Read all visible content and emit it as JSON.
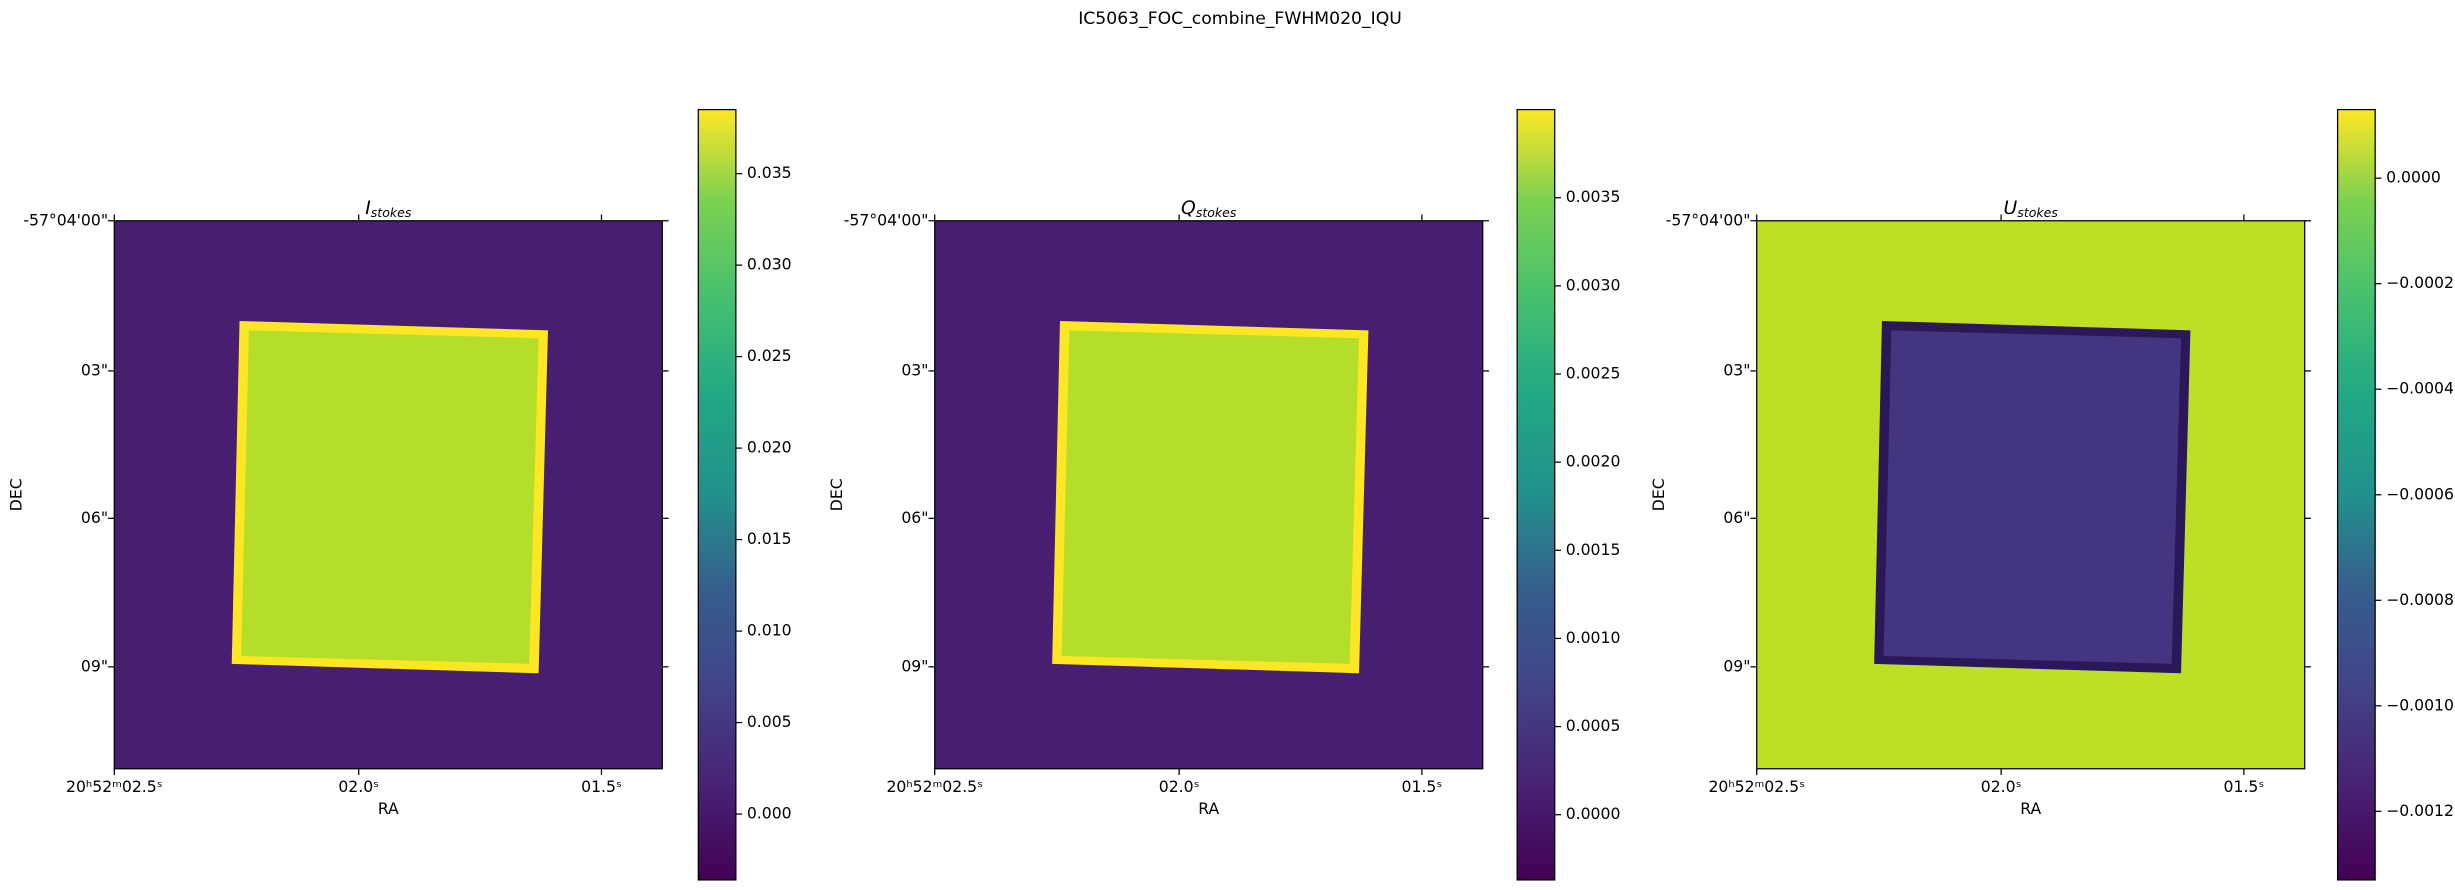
{
  "title": "IC5063_FOC_combine_FWHM020_IQU",
  "chart_data": [
    {
      "type": "image",
      "title": {
        "main": "I",
        "sub": "stokes"
      },
      "xlabel": "RA",
      "ylabel": "DEC",
      "xtick_labels": [
        "20ʰ52ᵐ02.5ˢ",
        "02.0ˢ",
        "01.5ˢ"
      ],
      "ytick_labels": [
        "-57°04'00\"",
        "03\"",
        "06\"",
        "09\""
      ],
      "colormap": "viridis",
      "background_color": "#481f70",
      "square_color": "#b5de2b",
      "edge_color": "#fde725",
      "clim": [
        -0.0036,
        0.0385
      ],
      "colorbar_ticks": [
        {
          "value": 0,
          "label": "0.000"
        },
        {
          "value": 0.005,
          "label": "0.005"
        },
        {
          "value": 0.01,
          "label": "0.010"
        },
        {
          "value": 0.015,
          "label": "0.015"
        },
        {
          "value": 0.02,
          "label": "0.020"
        },
        {
          "value": 0.025,
          "label": "0.025"
        },
        {
          "value": 0.03,
          "label": "0.030"
        },
        {
          "value": 0.035,
          "label": "0.035"
        }
      ]
    },
    {
      "type": "image",
      "title": {
        "main": "Q",
        "sub": "stokes"
      },
      "xlabel": "RA",
      "ylabel": "DEC",
      "xtick_labels": [
        "20ʰ52ᵐ02.5ˢ",
        "02.0ˢ",
        "01.5ˢ"
      ],
      "ytick_labels": [
        "-57°04'00\"",
        "03\"",
        "06\"",
        "09\""
      ],
      "colormap": "viridis",
      "background_color": "#481f70",
      "square_color": "#b5de2b",
      "edge_color": "#fde725",
      "clim": [
        -0.00037,
        0.004
      ],
      "colorbar_ticks": [
        {
          "value": 0,
          "label": "0.0000"
        },
        {
          "value": 0.0005,
          "label": "0.0005"
        },
        {
          "value": 0.001,
          "label": "0.0010"
        },
        {
          "value": 0.0015,
          "label": "0.0015"
        },
        {
          "value": 0.002,
          "label": "0.0020"
        },
        {
          "value": 0.0025,
          "label": "0.0025"
        },
        {
          "value": 0.003,
          "label": "0.0030"
        },
        {
          "value": 0.0035,
          "label": "0.0035"
        }
      ]
    },
    {
      "type": "image",
      "title": {
        "main": "U",
        "sub": "stokes"
      },
      "xlabel": "RA",
      "ylabel": "DEC",
      "xtick_labels": [
        "20ʰ52ᵐ02.5ˢ",
        "02.0ˢ",
        "01.5ˢ"
      ],
      "ytick_labels": [
        "-57°04'00\"",
        "03\"",
        "06\"",
        "09\""
      ],
      "colormap": "viridis",
      "background_color": "#bddf26",
      "square_color": "#433580",
      "edge_color": "#2a1858",
      "clim": [
        -0.00133,
        0.00013
      ],
      "colorbar_ticks": [
        {
          "value": -0.0012,
          "label": "−0.0012"
        },
        {
          "value": -0.001,
          "label": "−0.0010"
        },
        {
          "value": -0.0008,
          "label": "−0.0008"
        },
        {
          "value": -0.0006,
          "label": "−0.0006"
        },
        {
          "value": -0.0004,
          "label": "−0.0004"
        },
        {
          "value": -0.0002,
          "label": "−0.0002"
        },
        {
          "value": 0,
          "label": "0.0000"
        }
      ]
    }
  ]
}
